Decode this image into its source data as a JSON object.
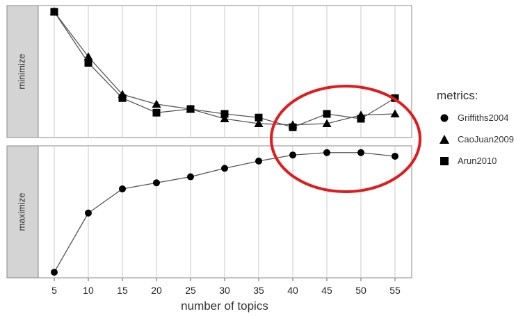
{
  "chart_data": {
    "type": "line",
    "xlabel": "number of topics",
    "x": [
      5,
      10,
      15,
      20,
      25,
      30,
      35,
      40,
      45,
      50,
      55
    ],
    "panels": [
      {
        "label": "minimize",
        "series": [
          {
            "name": "CaoJuan2009",
            "marker": "triangle",
            "values": [
              1.0,
              0.63,
              0.32,
              0.24,
              0.2,
              0.12,
              0.08,
              0.07,
              0.08,
              0.15,
              0.16
            ]
          },
          {
            "name": "Arun2010",
            "marker": "square",
            "values": [
              1.0,
              0.58,
              0.29,
              0.17,
              0.2,
              0.16,
              0.13,
              0.05,
              0.16,
              0.12,
              0.29
            ]
          }
        ]
      },
      {
        "label": "maximize",
        "series": [
          {
            "name": "Griffiths2004",
            "marker": "circle",
            "values": [
              0.0,
              0.49,
              0.69,
              0.74,
              0.79,
              0.86,
              0.92,
              0.97,
              0.99,
              0.99,
              0.96
            ]
          }
        ]
      }
    ],
    "legend": {
      "title": "metrics:",
      "position": "right",
      "entries": [
        {
          "name": "Griffiths2004",
          "marker": "circle"
        },
        {
          "name": "CaoJuan2009",
          "marker": "triangle"
        },
        {
          "name": "Arun2010",
          "marker": "square"
        }
      ]
    },
    "annotation": {
      "shape": "ellipse",
      "color": "#e31a1c",
      "x_range": [
        40,
        55
      ]
    },
    "grid": true
  }
}
